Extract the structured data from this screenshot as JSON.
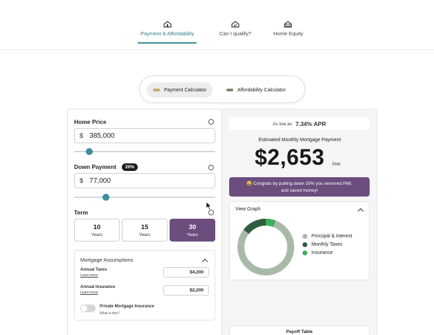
{
  "nav": {
    "tabs": [
      {
        "label": "Payment & Affordability",
        "icon": "house-dollar-icon",
        "active": true
      },
      {
        "label": "Can I qualify?",
        "icon": "house-check-icon",
        "active": false
      },
      {
        "label": "Home Equity",
        "icon": "house-money-icon",
        "active": false
      }
    ]
  },
  "calculator_toggle": {
    "payment_label": "Payment Calculator",
    "affordability_label": "Affordability Calculator",
    "active": "payment"
  },
  "form": {
    "home_price": {
      "label": "Home Price",
      "currency": "$",
      "value": "385,000",
      "slider_fraction": 0.09
    },
    "down_payment": {
      "label": "Down Payment",
      "badge": "20%",
      "currency": "$",
      "value": "77,000",
      "slider_fraction": 0.21
    },
    "term": {
      "label": "Term",
      "options": [
        {
          "number": "10",
          "unit": "Years",
          "selected": false
        },
        {
          "number": "15",
          "unit": "Years",
          "selected": false
        },
        {
          "number": "30",
          "unit": "Years",
          "selected": true
        }
      ]
    },
    "assumptions": {
      "title": "Mortgage Assumptions",
      "annual_taxes_label": "Annual Taxes",
      "annual_taxes_learn": "Learn more",
      "annual_taxes_value": "$4,200",
      "annual_insurance_label": "Annual Insurance",
      "annual_insurance_learn": "Learn more",
      "annual_insurance_value": "$2,200",
      "pmi_label": "Private Mortgage Insurance",
      "pmi_sub": "What is this?",
      "pmi_enabled": false
    }
  },
  "results": {
    "apr_prefix": "As low as",
    "apr_value": "7.34% APR",
    "estimate_label": "Estimated Monthly Mortgage Payment",
    "payment": "$2,653",
    "per_month": "/mo",
    "congrats_line1": "😀 Congrats by putting down 20% you removed PMI,",
    "congrats_line2": "and saved money!",
    "graph_title": "View Graph",
    "legend": [
      {
        "label": "Principal & Interest",
        "color": "#a8b9a8"
      },
      {
        "label": "Monthly Taxes",
        "color": "#2f5e3f"
      },
      {
        "label": "Insurance",
        "color": "#3fae5a"
      }
    ],
    "payoff_label": "Payoff Table"
  },
  "colors": {
    "accent": "#3e8e9a",
    "brand_purple": "#6b4e7e"
  }
}
